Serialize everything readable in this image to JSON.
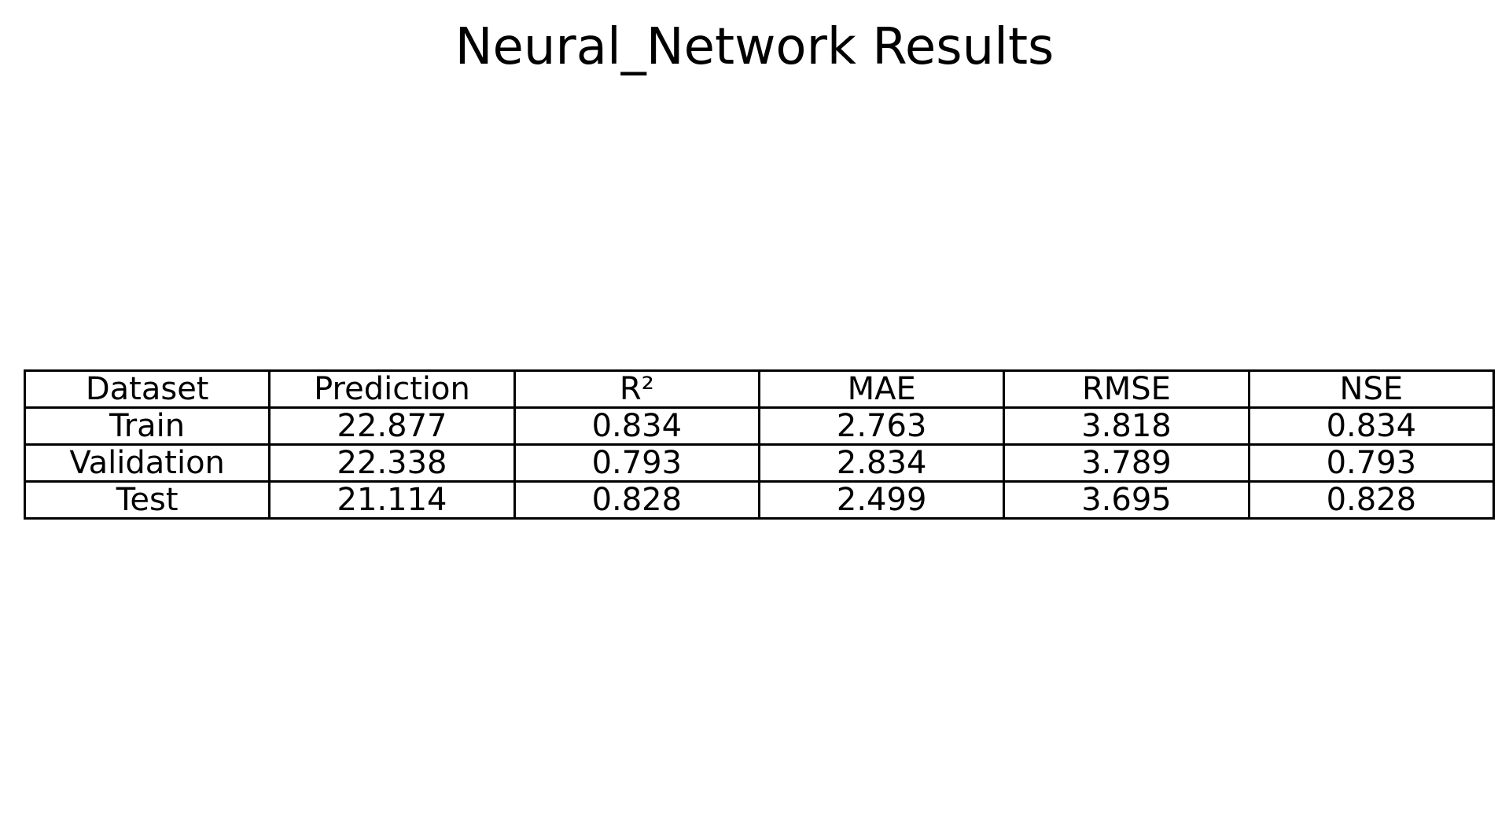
{
  "chart_data": {
    "type": "table",
    "title": "Neural_Network Results",
    "columns": [
      "Dataset",
      "Prediction",
      "R²",
      "MAE",
      "RMSE",
      "NSE"
    ],
    "rows": [
      [
        "Train",
        "22.877",
        "0.834",
        "2.763",
        "3.818",
        "0.834"
      ],
      [
        "Validation",
        "22.338",
        "0.793",
        "2.834",
        "3.789",
        "0.793"
      ],
      [
        "Test",
        "21.114",
        "0.828",
        "2.499",
        "3.695",
        "0.828"
      ]
    ]
  }
}
